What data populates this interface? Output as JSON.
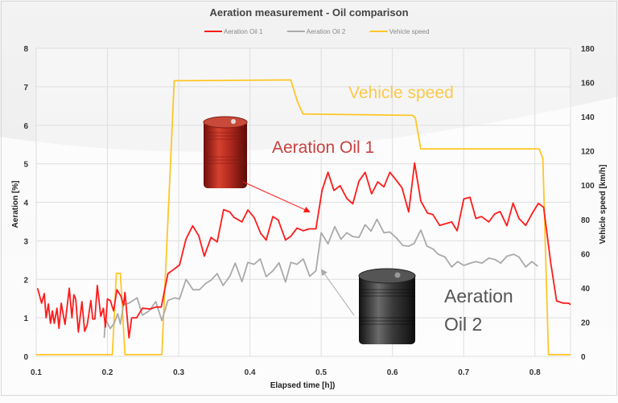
{
  "chart_data": {
    "type": "line",
    "title": "Aeration measurement - Oil comparison",
    "xlabel": "Elapsed time [h])",
    "ylabel": "Aeration [%]",
    "y2label": "Vehicle speed [km/h]",
    "xlim": [
      0.1,
      0.85
    ],
    "ylim": [
      0,
      8
    ],
    "y2lim": [
      0,
      180
    ],
    "xticks": [
      "0.1",
      "0.2",
      "0.3",
      "0.4",
      "0.5",
      "0.6",
      "0.7",
      "0.8"
    ],
    "yticks": [
      "0",
      "1",
      "2",
      "3",
      "4",
      "5",
      "6",
      "7",
      "8"
    ],
    "y2ticks": [
      "0",
      "20",
      "40",
      "60",
      "80",
      "100",
      "120",
      "140",
      "160",
      "180"
    ],
    "grid": true,
    "legend_position": "top",
    "series": [
      {
        "name": "Aeration Oil 1",
        "axis": "left",
        "color": "#ff1a1a",
        "x": [
          0.1019,
          0.1076,
          0.1113,
          0.1139,
          0.117,
          0.12,
          0.1227,
          0.1253,
          0.1291,
          0.132,
          0.1351,
          0.1404,
          0.1464,
          0.1502,
          0.1529,
          0.1555,
          0.1592,
          0.1642,
          0.168,
          0.1717,
          0.1767,
          0.1793,
          0.1823,
          0.1857,
          0.1906,
          0.1943,
          0.1971,
          0.2,
          0.2039,
          0.2087,
          0.2133,
          0.2189,
          0.2227,
          0.2246,
          0.2302,
          0.234,
          0.2408,
          0.2491,
          0.2605,
          0.2679,
          0.2755,
          0.2849,
          0.2925,
          0.3012,
          0.3103,
          0.3197,
          0.3284,
          0.3359,
          0.3454,
          0.354,
          0.3631,
          0.3718,
          0.3775,
          0.3888,
          0.3971,
          0.4058,
          0.4152,
          0.4228,
          0.4322,
          0.4398,
          0.4499,
          0.4575,
          0.4661,
          0.4749,
          0.4831,
          0.4926,
          0.5012,
          0.5096,
          0.5179,
          0.5266,
          0.536,
          0.5443,
          0.553,
          0.5617,
          0.5708,
          0.5794,
          0.5881,
          0.5964,
          0.6048,
          0.6134,
          0.6229,
          0.6311,
          0.6399,
          0.6493,
          0.6568,
          0.6662,
          0.6832,
          0.6908,
          0.7002,
          0.7089,
          0.7172,
          0.7248,
          0.7353,
          0.7436,
          0.7512,
          0.7606,
          0.7693,
          0.7776,
          0.7871,
          0.7965,
          0.8048,
          0.8123,
          0.8222,
          0.8305,
          0.8399,
          0.8475,
          0.85
        ],
        "y": [
          1.77,
          1.38,
          1.63,
          1.0,
          1.36,
          0.86,
          1.18,
          0.86,
          1.25,
          0.73,
          1.38,
          0.83,
          1.77,
          1.0,
          1.6,
          1.49,
          0.63,
          1.42,
          0.65,
          0.83,
          1.45,
          0.97,
          0.97,
          1.84,
          1.04,
          1.25,
          0.76,
          1.49,
          1.45,
          1.18,
          1.73,
          1.56,
          1.32,
          1.66,
          0.48,
          1.0,
          1.0,
          1.25,
          1.23,
          1.28,
          1.28,
          2.15,
          2.25,
          2.37,
          3.05,
          3.39,
          3.12,
          2.6,
          3.09,
          2.97,
          3.81,
          3.75,
          3.61,
          3.49,
          3.8,
          3.61,
          3.19,
          3.02,
          3.63,
          3.54,
          3.02,
          3.12,
          3.33,
          3.26,
          3.31,
          3.31,
          4.31,
          4.78,
          4.31,
          4.43,
          4.1,
          3.96,
          4.55,
          4.78,
          4.22,
          4.53,
          4.4,
          4.78,
          4.59,
          4.38,
          3.75,
          5.02,
          4.03,
          3.72,
          3.68,
          3.4,
          3.49,
          3.26,
          4.09,
          4.13,
          3.58,
          3.63,
          3.49,
          3.7,
          3.76,
          3.39,
          3.98,
          3.58,
          3.4,
          3.72,
          3.97,
          3.87,
          2.43,
          1.44,
          1.38,
          1.38,
          1.34
        ]
      },
      {
        "name": "Aeration Oil 2",
        "axis": "left",
        "color": "#aaaaaa",
        "x": [
          0.1955,
          0.1971,
          0.2039,
          0.2095,
          0.2144,
          0.2181,
          0.2227,
          0.2302,
          0.2359,
          0.2416,
          0.2491,
          0.2585,
          0.2679,
          0.2763,
          0.2849,
          0.2945,
          0.3012,
          0.3103,
          0.3201,
          0.3291,
          0.3378,
          0.3454,
          0.354,
          0.3624,
          0.3718,
          0.3793,
          0.3888,
          0.3971,
          0.4058,
          0.4145,
          0.4228,
          0.4322,
          0.4409,
          0.4499,
          0.4575,
          0.4661,
          0.4749,
          0.4839,
          0.4926,
          0.5001,
          0.5096,
          0.519,
          0.5277,
          0.536,
          0.5443,
          0.553,
          0.5617,
          0.57,
          0.5783,
          0.5881,
          0.5964,
          0.6059,
          0.6145,
          0.6229,
          0.6304,
          0.6399,
          0.6485,
          0.6568,
          0.6643,
          0.6738,
          0.6832,
          0.6915,
          0.7002,
          0.7096,
          0.7172,
          0.7255,
          0.7353,
          0.7444,
          0.752,
          0.7606,
          0.7701,
          0.7776,
          0.7871,
          0.7957,
          0.8041
        ],
        "y": [
          0.48,
          0.97,
          0.72,
          0.86,
          1.11,
          0.84,
          1.35,
          1.38,
          1.45,
          1.52,
          1.07,
          1.18,
          1.42,
          0.93,
          1.45,
          1.52,
          1.49,
          2.0,
          1.73,
          1.73,
          1.89,
          1.98,
          2.15,
          1.84,
          2.08,
          2.42,
          1.94,
          2.44,
          2.39,
          2.53,
          2.07,
          2.22,
          2.43,
          1.93,
          2.44,
          2.39,
          2.53,
          2.08,
          2.22,
          3.21,
          2.92,
          3.37,
          3.04,
          3.21,
          3.11,
          3.09,
          3.42,
          3.25,
          3.56,
          3.21,
          3.23,
          3.07,
          2.88,
          2.86,
          2.93,
          3.28,
          2.86,
          2.79,
          2.65,
          2.58,
          2.32,
          2.46,
          2.36,
          2.42,
          2.46,
          2.42,
          2.55,
          2.51,
          2.42,
          2.6,
          2.65,
          2.58,
          2.32,
          2.46,
          2.34
        ]
      },
      {
        "name": "Vehicle speed",
        "axis": "right",
        "color": "#ffc627",
        "x": [
          0.1,
          0.2068,
          0.2125,
          0.2181,
          0.2246,
          0.2763,
          0.2937,
          0.4574,
          0.4669,
          0.4745,
          0.6285,
          0.6322,
          0.6398,
          0.8059,
          0.8112,
          0.8191,
          0.85
        ],
        "y": [
          1,
          1,
          48.5,
          48.5,
          1,
          1,
          161,
          161.5,
          148.6,
          141.6,
          140.8,
          139.2,
          121.2,
          121.2,
          115.7,
          1,
          1
        ]
      }
    ],
    "annotations": [
      {
        "text": "Vehicle speed",
        "color": "#fbc94a"
      },
      {
        "text": "Aeration Oil 1",
        "color": "#c94141"
      },
      {
        "text": "Aeration",
        "color": "#555555"
      },
      {
        "text": "Oil 2",
        "color": "#555555"
      }
    ]
  }
}
